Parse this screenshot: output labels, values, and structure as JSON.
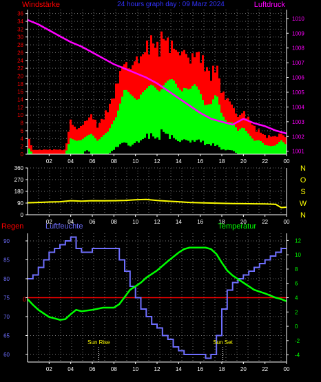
{
  "colors": {
    "background": "#000000",
    "axis": "#ffffff",
    "grid": "#777777",
    "wind_gust": "#ff0000",
    "wind_mean": "#00ff00",
    "wind_min": "#000000",
    "pressure": "#ff00ff",
    "direction": "#ffff00",
    "humidity": "#6f6fff",
    "temperature": "#00ff00",
    "rain": "#ff0000",
    "sun_marker": "#ffff00",
    "panel1_left_labels": "#ff0000",
    "panel1_right_labels": "#ff00ff",
    "panel1_title": "#3333ff",
    "panel2_labels": "#ffff00",
    "panel3_left_labels": "#6f6fff",
    "panel3_right_labels": "#00ff00"
  },
  "x_ticks": [
    "02",
    "04",
    "06",
    "08",
    "10",
    "12",
    "14",
    "16",
    "18",
    "20",
    "22",
    "00"
  ],
  "chart_data": [
    {
      "type": "bar",
      "title": "24 hours graph day : 09 Marz 2024",
      "ylabel": "Windstärke",
      "y2label": "Luftdruck",
      "xlim": [
        0,
        24
      ],
      "ylim": [
        0,
        37
      ],
      "y2lim": [
        1000.8,
        1010.6
      ],
      "y_ticks": [
        0,
        2,
        4,
        6,
        8,
        10,
        12,
        14,
        16,
        18,
        20,
        22,
        24,
        26,
        28,
        30,
        32,
        34,
        36
      ],
      "y2_ticks": [
        1001,
        1002,
        1003,
        1004,
        1005,
        1006,
        1007,
        1008,
        1009,
        1010
      ],
      "grid": true,
      "series": [
        {
          "name": "Windstärke",
          "hours": [
            0,
            0.5,
            1,
            1.5,
            2,
            2.5,
            3,
            3.5,
            4,
            4.5,
            5,
            5.5,
            6,
            6.5,
            7,
            7.5,
            8,
            8.5,
            9,
            9.5,
            10,
            10.5,
            11,
            11.5,
            12,
            12.5,
            13,
            13.5,
            14,
            14.5,
            15,
            15.5,
            16,
            16.5,
            17,
            17.5,
            18,
            18.5,
            19,
            19.5,
            20,
            20.5,
            21,
            21.5,
            22,
            22.5,
            23,
            23.5,
            24
          ],
          "gust": [
            5,
            1,
            1,
            1,
            1,
            1,
            1,
            1,
            8,
            6,
            7,
            8,
            9,
            6,
            8,
            10,
            13,
            18,
            22,
            21,
            23,
            22,
            24,
            25,
            23,
            26,
            25,
            25,
            24,
            26,
            22,
            23,
            22,
            19,
            17,
            20,
            14,
            13,
            12,
            9,
            10,
            8,
            6,
            5,
            4,
            4,
            4,
            5,
            4
          ],
          "mean": [
            2,
            0,
            0,
            0,
            0,
            0,
            0,
            0,
            4,
            3,
            3,
            4,
            5,
            3,
            4,
            5,
            8,
            11,
            14,
            13,
            13,
            14,
            14,
            15,
            15,
            16,
            16,
            16,
            15,
            16,
            14,
            15,
            14,
            12,
            11,
            13,
            9,
            8,
            7,
            5,
            6,
            5,
            3,
            3,
            2,
            2,
            2,
            3,
            2
          ],
          "min": [
            0,
            0,
            0,
            0,
            0,
            0,
            0,
            0,
            0,
            0,
            0,
            1,
            0,
            0,
            0,
            0,
            1,
            2,
            3,
            2,
            3,
            3,
            4,
            4,
            3,
            5,
            4,
            4,
            3,
            4,
            3,
            3,
            3,
            2,
            2,
            2,
            1,
            1,
            1,
            0,
            0,
            0,
            0,
            0,
            0,
            0,
            0,
            0,
            0
          ]
        },
        {
          "name": "Luftdruck",
          "hours": [
            0,
            1,
            2,
            3,
            4,
            5,
            6,
            7,
            8,
            9,
            10,
            11,
            12,
            13,
            14,
            15,
            16,
            17,
            18,
            19,
            20,
            21,
            22,
            23,
            24
          ],
          "values": [
            1009.9,
            1009.6,
            1009.2,
            1008.8,
            1008.4,
            1008.1,
            1007.7,
            1007.3,
            1006.9,
            1006.6,
            1006.3,
            1006.0,
            1005.6,
            1005.1,
            1004.6,
            1004.1,
            1003.6,
            1003.2,
            1003.0,
            1002.8,
            1003.2,
            1002.9,
            1002.7,
            1002.4,
            1002.2
          ]
        }
      ]
    },
    {
      "type": "line",
      "xlim": [
        0,
        24
      ],
      "ylim": [
        0,
        360
      ],
      "y_ticks": [
        0,
        90,
        180,
        270,
        360
      ],
      "direction_labels": [
        "N",
        "W",
        "S",
        "O",
        "N"
      ],
      "grid": true,
      "series": [
        {
          "name": "Windrichtung",
          "hours": [
            0,
            1,
            2,
            3,
            4,
            5,
            6,
            7,
            8,
            9,
            10,
            11,
            12,
            13,
            14,
            15,
            16,
            17,
            18,
            19,
            20,
            21,
            22,
            23,
            23.5,
            24
          ],
          "values": [
            92,
            95,
            98,
            100,
            108,
            105,
            108,
            107,
            108,
            110,
            115,
            118,
            110,
            105,
            100,
            95,
            92,
            90,
            88,
            86,
            85,
            84,
            83,
            80,
            55,
            58
          ]
        }
      ]
    },
    {
      "type": "line",
      "xlim": [
        0,
        24
      ],
      "ylim": [
        58,
        92
      ],
      "y_ticks": [
        60,
        65,
        70,
        75,
        80,
        85,
        90
      ],
      "y2lim": [
        -5,
        13
      ],
      "y2_ticks": [
        -4,
        -2,
        0,
        2,
        4,
        6,
        8,
        10,
        12
      ],
      "grid": true,
      "labels": {
        "rain": "Regen",
        "humidity": "Luftfeuchte",
        "temperature": "Temperatur",
        "rain_zero": "0"
      },
      "annotations": [
        {
          "text": "Sun Rise",
          "hour": 6.6
        },
        {
          "text": "Sun Set",
          "hour": 18.1
        }
      ],
      "series": [
        {
          "name": "Luftfeuchte",
          "hours": [
            0,
            0.5,
            1,
            1.5,
            2,
            2.5,
            3,
            3.5,
            4,
            4.5,
            5,
            6,
            7,
            8,
            8.5,
            9,
            9.5,
            10,
            10.5,
            11,
            11.5,
            12,
            12.5,
            13,
            13.5,
            14,
            14.5,
            15,
            15.5,
            16,
            16.5,
            17,
            17.5,
            18,
            18.5,
            19,
            19.5,
            20,
            20.5,
            21,
            21.5,
            22,
            22.5,
            23,
            23.5,
            24
          ],
          "values": [
            80,
            81,
            83,
            85,
            87,
            88,
            89,
            90,
            91,
            88,
            87,
            88,
            88,
            88,
            85,
            82,
            78,
            75,
            72,
            70,
            68,
            67,
            65,
            64,
            62,
            61,
            60,
            60,
            60,
            60,
            59,
            60,
            65,
            72,
            77,
            79,
            80,
            81,
            82,
            83,
            84,
            85,
            86,
            87,
            88,
            88
          ]
        },
        {
          "name": "Temperatur",
          "hours": [
            0,
            0.5,
            1,
            1.5,
            2,
            2.5,
            3,
            3.5,
            4,
            4.5,
            5,
            6,
            7,
            8,
            8.5,
            9,
            9.5,
            10,
            10.5,
            11,
            12,
            13,
            14,
            14.5,
            15,
            16,
            16.5,
            17,
            17.5,
            18,
            18.5,
            19,
            20,
            21,
            22,
            22.5,
            23,
            23.5,
            24
          ],
          "values": [
            3.8,
            3.0,
            2.3,
            1.8,
            1.3,
            1.1,
            0.9,
            1.0,
            1.7,
            2.3,
            2.1,
            2.3,
            2.6,
            2.6,
            3.1,
            4.1,
            5.1,
            5.6,
            6.1,
            6.8,
            7.8,
            9.1,
            10.3,
            10.8,
            11.0,
            11.0,
            11.0,
            10.8,
            10.1,
            8.9,
            7.8,
            7.1,
            6.1,
            5.1,
            4.6,
            4.3,
            4.0,
            3.8,
            3.5
          ]
        },
        {
          "name": "Regen",
          "hours": [
            0,
            24
          ],
          "values": [
            0,
            0
          ]
        }
      ]
    }
  ]
}
